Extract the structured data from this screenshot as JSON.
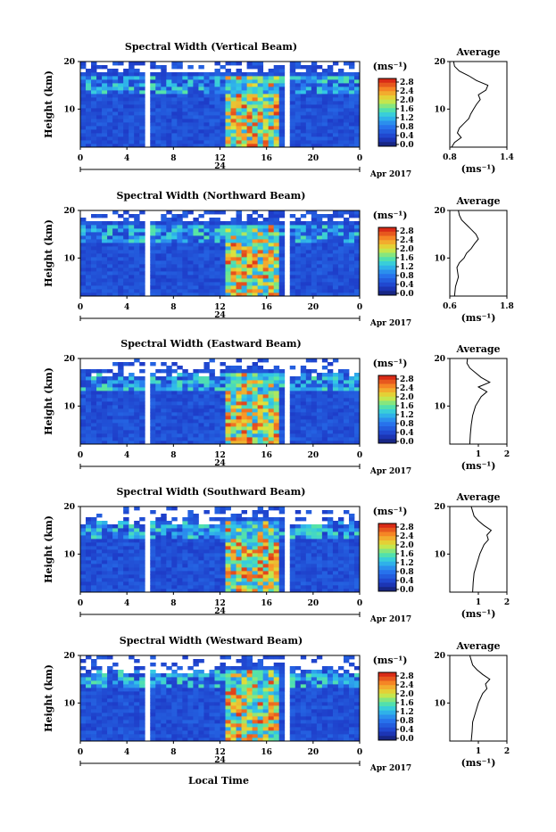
{
  "figure": {
    "xlabel": "Local Time",
    "date_label": "Apr 2017",
    "day_label": "24",
    "colorbar_unit": "(ms⁻¹)",
    "colorbar_ticks": [
      "2.8",
      "2.4",
      "2.0",
      "1.6",
      "1.2",
      "0.8",
      "0.4",
      "0.0"
    ],
    "avg_title": "Average",
    "avg_xlabel": "(ms⁻¹)",
    "ylabel": "Height (km)"
  },
  "chart_data": [
    {
      "type": "heatmap",
      "title": "Spectral Width (Vertical Beam)",
      "xlabel": "Local Time",
      "ylabel": "Height (km)",
      "xlim": [
        0,
        24
      ],
      "ylim": [
        2,
        20
      ],
      "xticks": [
        "0",
        "4",
        "8",
        "12",
        "16",
        "20",
        "0"
      ],
      "yticks": [
        "20",
        "10"
      ],
      "colorbar": {
        "range": [
          0,
          3.0
        ],
        "unit": "ms-1"
      },
      "data_gaps_hours": [
        [
          5.5,
          5.9
        ],
        [
          17.5,
          17.9
        ]
      ],
      "average": {
        "title": "Average",
        "xlim": [
          0.8,
          1.4
        ],
        "xticks": [
          "0.8",
          "1.4"
        ],
        "profile": [
          [
            0.82,
            2
          ],
          [
            0.85,
            3
          ],
          [
            0.92,
            4
          ],
          [
            0.88,
            5
          ],
          [
            0.9,
            6
          ],
          [
            0.95,
            7
          ],
          [
            1.0,
            8
          ],
          [
            1.02,
            9
          ],
          [
            1.05,
            10
          ],
          [
            1.08,
            11
          ],
          [
            1.12,
            12
          ],
          [
            1.1,
            13
          ],
          [
            1.18,
            14
          ],
          [
            1.2,
            15
          ],
          [
            1.08,
            16
          ],
          [
            1.0,
            17
          ],
          [
            0.9,
            18
          ],
          [
            0.85,
            19
          ],
          [
            0.84,
            20
          ]
        ]
      }
    },
    {
      "type": "heatmap",
      "title": "Spectral Width (Northward Beam)",
      "xlabel": "Local Time",
      "ylabel": "Height (km)",
      "xlim": [
        0,
        24
      ],
      "ylim": [
        2,
        20
      ],
      "xticks": [
        "0",
        "4",
        "8",
        "12",
        "16",
        "20",
        "0"
      ],
      "yticks": [
        "20",
        "10"
      ],
      "colorbar": {
        "range": [
          0,
          3.0
        ],
        "unit": "ms-1"
      },
      "data_gaps_hours": [
        [
          5.5,
          5.9
        ],
        [
          17.5,
          17.9
        ]
      ],
      "average": {
        "title": "Average",
        "xlim": [
          0.6,
          1.8
        ],
        "xticks": [
          "0.6",
          "1.8"
        ],
        "profile": [
          [
            0.7,
            2
          ],
          [
            0.72,
            4
          ],
          [
            0.78,
            6
          ],
          [
            0.75,
            8
          ],
          [
            0.8,
            9
          ],
          [
            0.9,
            10
          ],
          [
            0.95,
            11
          ],
          [
            1.05,
            12
          ],
          [
            1.12,
            13
          ],
          [
            1.2,
            14
          ],
          [
            1.15,
            15
          ],
          [
            1.05,
            16
          ],
          [
            0.95,
            17
          ],
          [
            0.85,
            18
          ],
          [
            0.8,
            19
          ],
          [
            0.78,
            20
          ]
        ]
      }
    },
    {
      "type": "heatmap",
      "title": "Spectral Width (Eastward Beam)",
      "xlabel": "Local Time",
      "ylabel": "Height (km)",
      "xlim": [
        0,
        24
      ],
      "ylim": [
        2,
        20
      ],
      "xticks": [
        "0",
        "4",
        "8",
        "12",
        "16",
        "20",
        "0"
      ],
      "yticks": [
        "20",
        "10"
      ],
      "colorbar": {
        "range": [
          0,
          3.0
        ],
        "unit": "ms-1"
      },
      "data_gaps_hours": [
        [
          5.5,
          5.9
        ],
        [
          17.5,
          17.9
        ]
      ],
      "average": {
        "title": "Average",
        "xlim": [
          0,
          2
        ],
        "xticks": [
          "1",
          "2"
        ],
        "profile": [
          [
            0.7,
            2
          ],
          [
            0.72,
            4
          ],
          [
            0.75,
            6
          ],
          [
            0.8,
            8
          ],
          [
            0.9,
            10
          ],
          [
            1.1,
            12
          ],
          [
            1.3,
            13
          ],
          [
            1.0,
            14
          ],
          [
            1.4,
            15
          ],
          [
            1.1,
            16
          ],
          [
            0.9,
            17
          ],
          [
            0.7,
            18
          ],
          [
            0.6,
            19
          ],
          [
            0.62,
            20
          ]
        ]
      }
    },
    {
      "type": "heatmap",
      "title": "Spectral Width (Southward Beam)",
      "xlabel": "Local Time",
      "ylabel": "Height (km)",
      "xlim": [
        0,
        24
      ],
      "ylim": [
        2,
        20
      ],
      "xticks": [
        "0",
        "4",
        "8",
        "12",
        "16",
        "20",
        "0"
      ],
      "yticks": [
        "20",
        "10"
      ],
      "colorbar": {
        "range": [
          0,
          3.0
        ],
        "unit": "ms-1"
      },
      "data_gaps_hours": [
        [
          5.5,
          5.9
        ],
        [
          17.5,
          17.9
        ]
      ],
      "average": {
        "title": "Average",
        "xlim": [
          0,
          2
        ],
        "xticks": [
          "1",
          "2"
        ],
        "profile": [
          [
            0.8,
            2
          ],
          [
            0.82,
            4
          ],
          [
            0.85,
            6
          ],
          [
            0.95,
            8
          ],
          [
            1.05,
            10
          ],
          [
            1.2,
            12
          ],
          [
            1.35,
            13
          ],
          [
            1.3,
            14
          ],
          [
            1.45,
            15
          ],
          [
            1.2,
            16
          ],
          [
            1.0,
            17
          ],
          [
            0.85,
            18
          ],
          [
            0.8,
            19
          ],
          [
            0.75,
            20
          ]
        ]
      }
    },
    {
      "type": "heatmap",
      "title": "Spectral Width (Westward Beam)",
      "xlabel": "Local Time",
      "ylabel": "Height (km)",
      "xlim": [
        0,
        24
      ],
      "ylim": [
        2,
        20
      ],
      "xticks": [
        "0",
        "4",
        "8",
        "12",
        "16",
        "20",
        "0"
      ],
      "yticks": [
        "20",
        "10"
      ],
      "colorbar": {
        "range": [
          0,
          3.0
        ],
        "unit": "ms-1"
      },
      "data_gaps_hours": [
        [
          5.5,
          5.9
        ],
        [
          17.5,
          17.9
        ]
      ],
      "average": {
        "title": "Average",
        "xlim": [
          0,
          2
        ],
        "xticks": [
          "1",
          "2"
        ],
        "profile": [
          [
            0.75,
            2
          ],
          [
            0.78,
            4
          ],
          [
            0.8,
            6
          ],
          [
            0.9,
            8
          ],
          [
            1.0,
            10
          ],
          [
            1.15,
            12
          ],
          [
            1.3,
            13
          ],
          [
            1.25,
            14
          ],
          [
            1.4,
            15
          ],
          [
            1.15,
            16
          ],
          [
            0.95,
            17
          ],
          [
            0.8,
            18
          ],
          [
            0.75,
            19
          ],
          [
            0.7,
            20
          ]
        ]
      }
    }
  ]
}
